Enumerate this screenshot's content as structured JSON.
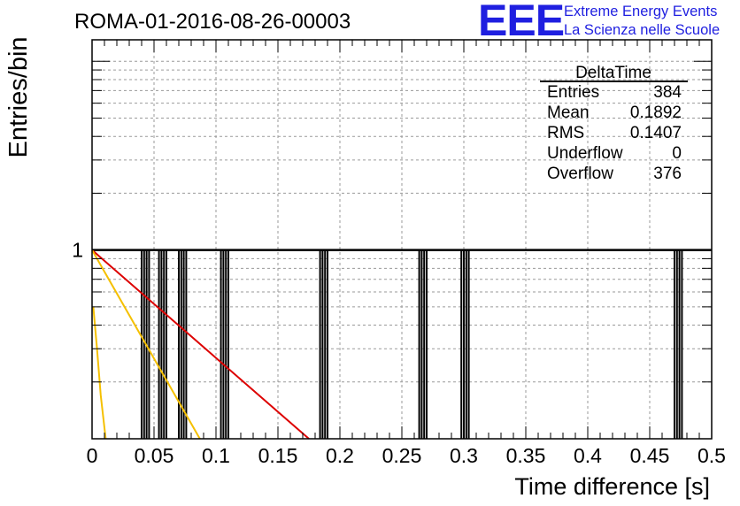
{
  "logo": {
    "mark": "EEE",
    "line1": "Extreme Energy Events",
    "line2": "La Scienza nelle Scuole",
    "color": "#1f1fe0"
  },
  "chart_data": {
    "type": "bar",
    "title": "ROMA-01-2016-08-26-00003",
    "xlabel": "Time difference [s]",
    "ylabel": "Entries/bin",
    "xlim": [
      0,
      0.5
    ],
    "y_scale": "log",
    "ylim": [
      0.1,
      13
    ],
    "x_ticks": [
      "0",
      "0.05",
      "0.1",
      "0.15",
      "0.2",
      "0.25",
      "0.3",
      "0.35",
      "0.4",
      "0.45",
      "0.5"
    ],
    "y_ticks": [
      "1"
    ],
    "grid": true,
    "bin_width": 0.002,
    "bins": [
      {
        "x": 0.04,
        "value": 1
      },
      {
        "x": 0.044,
        "value": 1
      },
      {
        "x": 0.054,
        "value": 1
      },
      {
        "x": 0.058,
        "value": 1
      },
      {
        "x": 0.07,
        "value": 1
      },
      {
        "x": 0.074,
        "value": 1
      },
      {
        "x": 0.104,
        "value": 1
      },
      {
        "x": 0.108,
        "value": 1
      },
      {
        "x": 0.184,
        "value": 1
      },
      {
        "x": 0.188,
        "value": 1
      },
      {
        "x": 0.264,
        "value": 1
      },
      {
        "x": 0.268,
        "value": 1
      },
      {
        "x": 0.298,
        "value": 1
      },
      {
        "x": 0.302,
        "value": 1
      },
      {
        "x": 0.47,
        "value": 1
      },
      {
        "x": 0.474,
        "value": 1
      }
    ],
    "fit_curves": [
      {
        "color": "#dd0000",
        "points": [
          [
            0,
            1
          ],
          [
            0.175,
            0.1
          ]
        ]
      },
      {
        "color": "#f5c000",
        "points": [
          [
            0,
            1
          ],
          [
            0.087,
            0.1
          ]
        ]
      },
      {
        "color": "#f5c000",
        "points": [
          [
            0.001,
            0.5
          ],
          [
            0.004,
            0.3
          ],
          [
            0.007,
            0.17
          ],
          [
            0.011,
            0.1
          ]
        ]
      }
    ],
    "stats": {
      "name": "DeltaTime",
      "rows": [
        {
          "label": "Entries",
          "value": "384"
        },
        {
          "label": "Mean",
          "value": "0.1892"
        },
        {
          "label": "RMS",
          "value": "0.1407"
        },
        {
          "label": "Underflow",
          "value": "0"
        },
        {
          "label": "Overflow",
          "value": "376"
        }
      ]
    }
  }
}
